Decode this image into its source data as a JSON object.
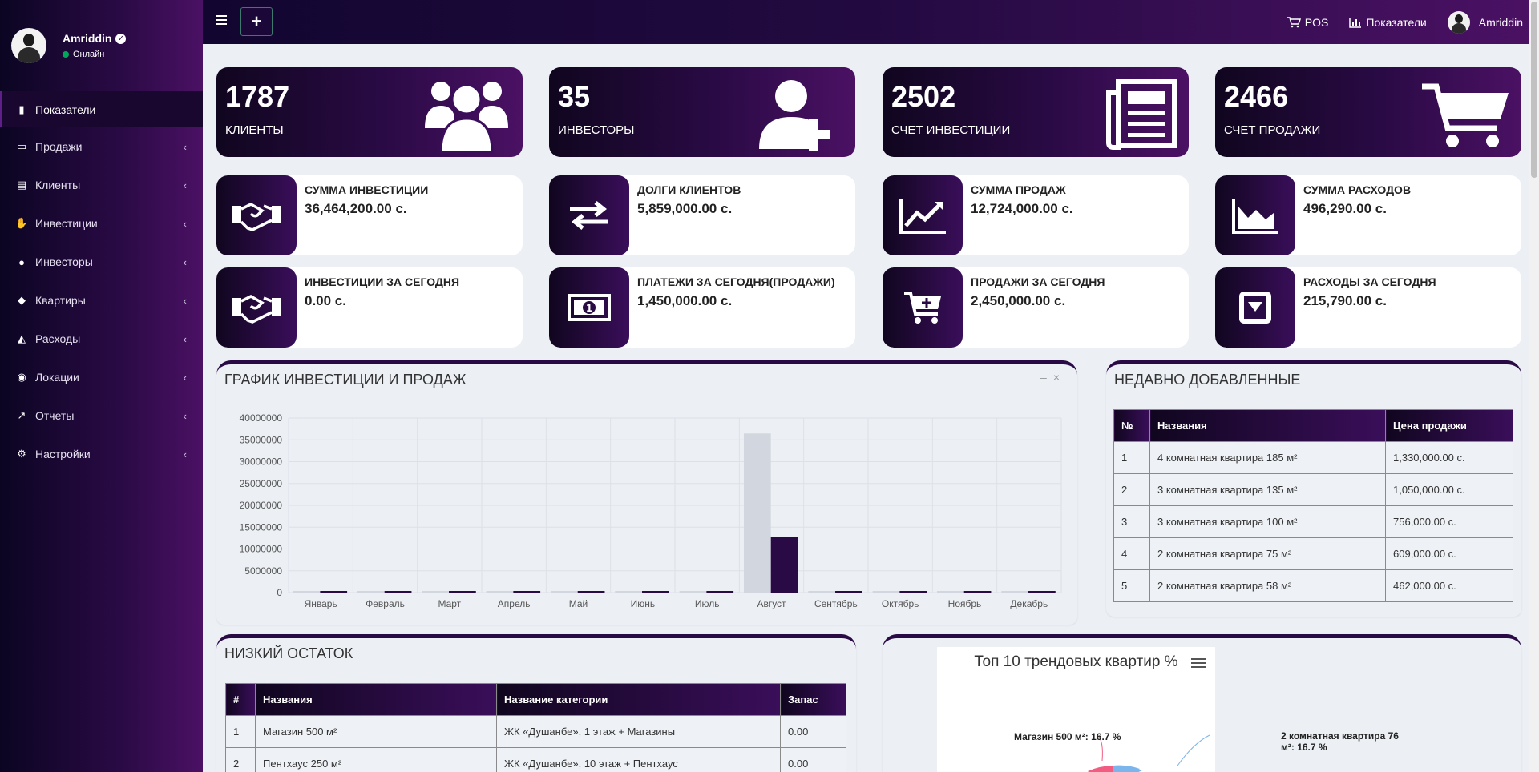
{
  "user": {
    "name": "Amriddin",
    "status": "Онлайн"
  },
  "sidebar": {
    "items": [
      {
        "label": "Показатели",
        "icon": "bar-chart-icon",
        "active": true
      },
      {
        "label": "Продажи",
        "icon": "credit-card-icon"
      },
      {
        "label": "Клиенты",
        "icon": "id-card-icon"
      },
      {
        "label": "Инвестиции",
        "icon": "handshake-icon"
      },
      {
        "label": "Инвесторы",
        "icon": "users-icon"
      },
      {
        "label": "Квартиры",
        "icon": "cube-icon"
      },
      {
        "label": "Расходы",
        "icon": "area-chart-icon"
      },
      {
        "label": "Локации",
        "icon": "globe-icon"
      },
      {
        "label": "Отчеты",
        "icon": "line-chart-icon"
      },
      {
        "label": "Настройки",
        "icon": "cogs-icon"
      }
    ]
  },
  "header": {
    "pos": "POS",
    "dashboard": "Показатели",
    "user": "Amriddin"
  },
  "stats": [
    {
      "value": "1787",
      "label": "КЛИЕНТЫ",
      "icon": "users-icon"
    },
    {
      "value": "35",
      "label": "ИНВЕСТОРЫ",
      "icon": "user-plus-icon"
    },
    {
      "value": "2502",
      "label": "СЧЕТ ИНВЕСТИЦИИ",
      "icon": "newspaper-icon"
    },
    {
      "value": "2466",
      "label": "СЧЕТ ПРОДАЖИ",
      "icon": "cart-icon"
    }
  ],
  "info": [
    {
      "title": "СУММА ИНВЕСТИЦИИ",
      "value": "36,464,200.00 с.",
      "icon": "handshake-icon"
    },
    {
      "title": "ДОЛГИ КЛИЕНТОВ",
      "value": "5,859,000.00 с.",
      "icon": "exchange-icon"
    },
    {
      "title": "СУММА ПРОДАЖ",
      "value": "12,724,000.00 с.",
      "icon": "line-chart-icon"
    },
    {
      "title": "СУММА РАСХОДОВ",
      "value": "496,290.00 с.",
      "icon": "area-chart-icon"
    },
    {
      "title": "ИНВЕСТИЦИИ ЗА СЕГОДНЯ",
      "value": "0.00 с.",
      "icon": "handshake-icon"
    },
    {
      "title": "ПЛАТЕЖИ ЗА СЕГОДНЯ(ПРОДАЖИ)",
      "value": "1,450,000.00 с.",
      "icon": "money-icon"
    },
    {
      "title": "ПРОДАЖИ ЗА СЕГОДНЯ",
      "value": "2,450,000.00 с.",
      "icon": "cart-plus-icon"
    },
    {
      "title": "РАСХОДЫ ЗА СЕГОДНЯ",
      "value": "215,790.00 с.",
      "icon": "caret-square-icon"
    }
  ],
  "chart_panel": {
    "title": "ГРАФИК ИНВЕСТИЦИИ И ПРОДАЖ"
  },
  "chart_data": {
    "type": "bar",
    "categories": [
      "Январь",
      "Февраль",
      "Март",
      "Апрель",
      "Май",
      "Июнь",
      "Июль",
      "Август",
      "Сентябрь",
      "Октябрь",
      "Ноябрь",
      "Декабрь"
    ],
    "series": [
      {
        "color": "#d2d6de",
        "values": [
          0,
          0,
          0,
          0,
          0,
          0,
          0,
          36464200,
          0,
          0,
          0,
          0
        ]
      },
      {
        "color": "#2a0a45",
        "values": [
          0,
          0,
          0,
          0,
          0,
          0,
          0,
          12724000,
          0,
          0,
          0,
          0
        ]
      }
    ],
    "yticks": [
      "40000000",
      "35000000",
      "30000000",
      "25000000",
      "20000000",
      "15000000",
      "10000000",
      "5000000",
      "0"
    ],
    "ylim": [
      0,
      40000000
    ]
  },
  "recent": {
    "title": "НЕДАВНО ДОБАВЛЕННЫЕ",
    "headers": [
      "№",
      "Названия",
      "Цена продажи"
    ],
    "rows": [
      [
        "1",
        "4 комнатная квартира 185 м²",
        "1,330,000.00 с."
      ],
      [
        "2",
        "3 комнатная квартира 135 м²",
        "1,050,000.00 с."
      ],
      [
        "3",
        "3 комнатная квартира 100 м²",
        "756,000.00 с."
      ],
      [
        "4",
        "2 комнатная квартира 75 м²",
        "609,000.00 с."
      ],
      [
        "5",
        "2 комнатная квартира 58 м²",
        "462,000.00 с."
      ]
    ]
  },
  "low_stock": {
    "title": "НИЗКИЙ ОСТАТОК",
    "headers": [
      "#",
      "Названия",
      "Название категории",
      "Запас"
    ],
    "rows": [
      [
        "1",
        "Магазин 500 м²",
        "ЖК «Душанбе», 1 этаж + Магазины",
        "0.00"
      ],
      [
        "2",
        "Пентхаус 250 м²",
        "ЖК «Душанбе», 10 этаж + Пентхаус",
        "0.00"
      ]
    ]
  },
  "pie": {
    "title": "Топ 10 трендовых квартир %",
    "label_left": "Магазин 500 м²: 16.7 %",
    "label_right_1": "2 комнатная квартира 76",
    "label_right_2": "м²: 16.7 %",
    "colors": [
      "#f15c80",
      "#7cb5ec"
    ]
  }
}
